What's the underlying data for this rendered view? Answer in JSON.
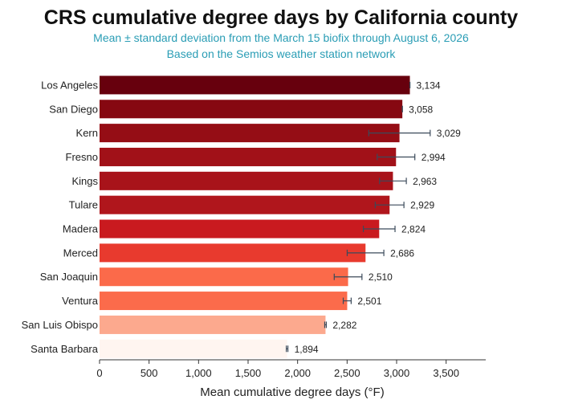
{
  "chart_data": {
    "type": "bar",
    "orientation": "horizontal",
    "title": "CRS cumulative degree days by California county",
    "subtitle": [
      "Mean ± standard deviation from the March 15 biofix through August 6, 2026",
      "Based on the Semios weather station network"
    ],
    "xlabel": "Mean cumulative degree days (°F)",
    "ylabel": "",
    "xlim": [
      0,
      3900
    ],
    "xticks": [
      0,
      500,
      1000,
      1500,
      2000,
      2500,
      3000,
      3500
    ],
    "xtick_labels": [
      "0",
      "500",
      "1,000",
      "1,500",
      "2,000",
      "2,500",
      "3,000",
      "3,500"
    ],
    "grid": false,
    "categories": [
      "Los Angeles",
      "San Diego",
      "Kern",
      "Fresno",
      "Kings",
      "Tulare",
      "Madera",
      "Merced",
      "San Joaquin",
      "Ventura",
      "San Luis Obispo",
      "Santa Barbara"
    ],
    "values": [
      3134,
      3058,
      3029,
      2994,
      2963,
      2929,
      2824,
      2686,
      2510,
      2501,
      2282,
      1894
    ],
    "value_labels": [
      "3,134",
      "3,058",
      "3,029",
      "2,994",
      "2,963",
      "2,929",
      "2,824",
      "2,686",
      "2,510",
      "2,501",
      "2,282",
      "1,894"
    ],
    "std": [
      0,
      0,
      310,
      190,
      135,
      145,
      160,
      185,
      140,
      40,
      8,
      8
    ],
    "colors": [
      "#67000d",
      "#860811",
      "#950d15",
      "#a11118",
      "#a8131a",
      "#b0161c",
      "#c91a1f",
      "#e83a2e",
      "#fb6a4a",
      "#fb6b4b",
      "#fca98e",
      "#fff5f0"
    ],
    "error_bar_color": "#3b4a5a"
  }
}
